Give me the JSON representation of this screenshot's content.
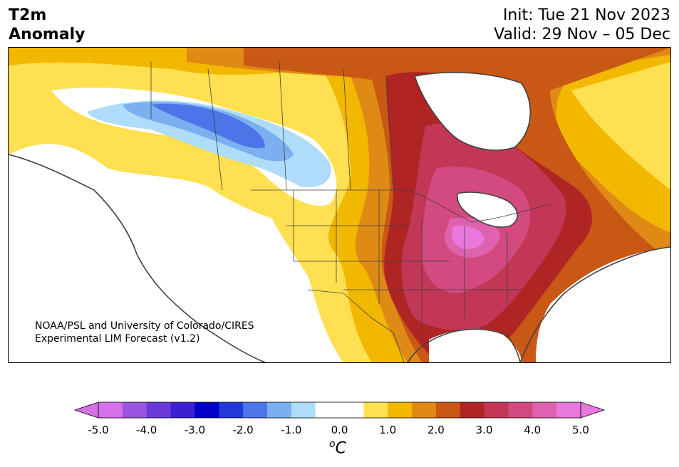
{
  "header": {
    "title_line1": "T2m",
    "title_line2": "Anomaly",
    "init": "Init: Tue 21 Nov 2023",
    "valid": "Valid: 29 Nov – 05 Dec"
  },
  "credit": {
    "line1": "NOAA/PSL and University of Colorado/CIRES",
    "line2": "Experimental LIM Forecast (v1.2)"
  },
  "colorbar": {
    "ticks": [
      "-5.0",
      "-4.0",
      "-3.0",
      "-2.0",
      "-1.0",
      "0.0",
      "1.0",
      "2.0",
      "3.0",
      "4.0",
      "5.0"
    ],
    "unit_base": "C",
    "unit_sup": "o",
    "colors": [
      "#d670e8",
      "#9b55e0",
      "#6a3ad8",
      "#3a20d0",
      "#0000c8",
      "#2238d8",
      "#4d74e8",
      "#7ab0f0",
      "#aedcfa",
      "#ffffff",
      "#ffffff",
      "#ffe050",
      "#f2b800",
      "#df8a14",
      "#c85814",
      "#b02424",
      "#c23656",
      "#d24a80",
      "#de62ad",
      "#e878dc"
    ],
    "extend_left_color": "#d670e8",
    "extend_right_color": "#e878dc"
  },
  "map": {
    "field": "T2m anomaly",
    "region": "North America",
    "features": [
      "coastlines",
      "country borders",
      "state and province borders",
      "Great Lakes"
    ]
  }
}
